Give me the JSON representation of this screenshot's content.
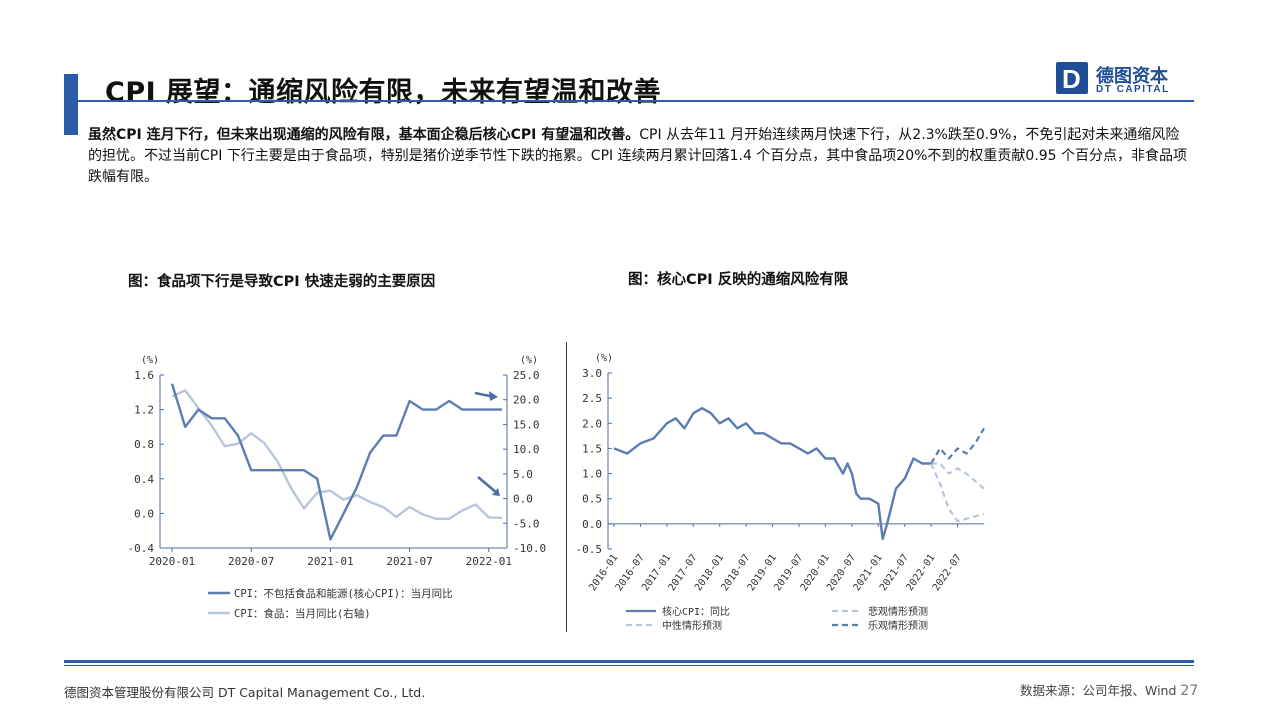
{
  "slide": {
    "title": "CPI 展望：通缩风险有限，未来有望温和改善",
    "body_bold": "虽然CPI 连月下行，但未来出现通缩的风险有限，基本面企稳后核心CPI 有望温和改善。",
    "body_rest": "CPI 从去年11 月开始连续两月快速下行，从2.3%跌至0.9%，不免引起对未来通缩风险的担忧。不过当前CPI 下行主要是由于食品项，特别是猪价逆季节性下跌的拖累。CPI 连续两月累计回落1.4 个百分点，其中食品项20%不到的权重贡献0.95 个百分点，非食品项跌幅有限。",
    "chart1_title": "图：食品项下行是导致CPI 快速走弱的主要原因",
    "chart2_title": "图：核心CPI 反映的通缩风险有限"
  },
  "logo": {
    "cn": "德图资本",
    "en": "DT CAPITAL",
    "mark": "D"
  },
  "footer": {
    "company": "德图资本管理股份有限公司  DT Capital Management  Co., Ltd.",
    "source": "数据来源：公司年报、Wind",
    "page": "27"
  },
  "colors": {
    "accent": "#2a5ca8",
    "series_dark": "#5b7db0",
    "series_light": "#b7c6dd"
  },
  "chart_data": [
    {
      "type": "line",
      "left_unit": "(%)",
      "right_unit": "(%)",
      "left_ylim": [
        -0.4,
        1.6
      ],
      "left_ticks": [
        "1.6",
        "1.2",
        "0.8",
        "0.4",
        "0.0",
        "-0.4"
      ],
      "right_ylim": [
        -10,
        25
      ],
      "right_ticks": [
        "25.0",
        "20.0",
        "15.0",
        "10.0",
        "5.0",
        "0.0",
        "-5.0",
        "-10.0"
      ],
      "x_ticks": [
        "2020-01",
        "2020-07",
        "2021-01",
        "2021-07",
        "2022-01"
      ],
      "x_range_months": 25,
      "series": [
        {
          "name": "CPI：不包括食品和能源(核心CPI)：当月同比",
          "axis": "left",
          "color": "#5b7db0",
          "x": [
            0,
            1,
            2,
            3,
            4,
            5,
            6,
            7,
            8,
            9,
            10,
            11,
            12,
            13,
            14,
            15,
            16,
            17,
            18,
            19,
            20,
            21,
            22,
            23,
            24,
            25
          ],
          "values": [
            1.5,
            1.0,
            1.2,
            1.1,
            1.1,
            0.9,
            0.5,
            0.5,
            0.5,
            0.5,
            0.5,
            0.4,
            -0.3,
            0.0,
            0.3,
            0.7,
            0.9,
            0.9,
            1.3,
            1.2,
            1.2,
            1.3,
            1.2,
            1.2,
            1.2,
            1.2
          ]
        },
        {
          "name": "CPI：食品：当月同比(右轴)",
          "axis": "right",
          "color": "#b7c6dd",
          "x": [
            0,
            1,
            2,
            3,
            4,
            5,
            6,
            7,
            8,
            9,
            10,
            11,
            12,
            13,
            14,
            15,
            16,
            17,
            18,
            19,
            20,
            21,
            22,
            23,
            24,
            25
          ],
          "values": [
            20.6,
            21.9,
            18.3,
            14.8,
            10.6,
            11.1,
            13.2,
            11.2,
            7.5,
            2.2,
            -2.0,
            1.2,
            1.6,
            -0.2,
            0.7,
            -0.7,
            -1.7,
            -3.7,
            -1.7,
            -3.2,
            -4.1,
            -4.1,
            -2.4,
            -1.2,
            -3.8,
            -3.9
          ]
        }
      ]
    },
    {
      "type": "line",
      "unit": "(%)",
      "ylim": [
        -0.5,
        3.0
      ],
      "y_ticks": [
        "3.0",
        "2.5",
        "2.0",
        "1.5",
        "1.0",
        "0.5",
        "0.0",
        "-0.5"
      ],
      "x_ticks": [
        "2016-01",
        "2016-07",
        "2017-01",
        "2017-07",
        "2018-01",
        "2018-07",
        "2019-01",
        "2019-07",
        "2020-01",
        "2020-07",
        "2021-01",
        "2021-07",
        "2022-01",
        "2022-07"
      ],
      "x_range_months": 84,
      "series": [
        {
          "name": "核心CPI：同比",
          "style": "solid",
          "color": "#5b7db0",
          "x": [
            0,
            3,
            6,
            9,
            12,
            14,
            16,
            18,
            20,
            22,
            24,
            26,
            28,
            30,
            32,
            34,
            36,
            38,
            40,
            42,
            44,
            46,
            48,
            50,
            52,
            53,
            54,
            55,
            56,
            58,
            60,
            61,
            62,
            64,
            66,
            68,
            70,
            72
          ],
          "values": [
            1.5,
            1.4,
            1.6,
            1.7,
            2.0,
            2.1,
            1.9,
            2.2,
            2.3,
            2.2,
            2.0,
            2.1,
            1.9,
            2.0,
            1.8,
            1.8,
            1.7,
            1.6,
            1.6,
            1.5,
            1.4,
            1.5,
            1.3,
            1.3,
            1.0,
            1.2,
            1.0,
            0.6,
            0.5,
            0.5,
            0.4,
            -0.3,
            0.0,
            0.7,
            0.9,
            1.3,
            1.2,
            1.2
          ]
        },
        {
          "name": "悲观情形预测",
          "style": "dashed-light",
          "color": "#b7c6dd",
          "x": [
            72,
            74,
            76,
            78,
            80,
            82,
            84
          ],
          "values": [
            1.2,
            0.8,
            0.3,
            0.05,
            0.1,
            0.15,
            0.2
          ]
        },
        {
          "name": "中性情形预测",
          "style": "dashed-light",
          "color": "#b7c6dd",
          "x": [
            72,
            74,
            76,
            78,
            80,
            82,
            84
          ],
          "values": [
            1.2,
            1.2,
            1.0,
            1.1,
            1.0,
            0.85,
            0.7
          ]
        },
        {
          "name": "乐观情形预测",
          "style": "dashed-dark",
          "color": "#5b7db0",
          "x": [
            72,
            74,
            76,
            78,
            80,
            82,
            84
          ],
          "values": [
            1.2,
            1.5,
            1.3,
            1.5,
            1.4,
            1.6,
            1.9
          ]
        }
      ]
    }
  ]
}
